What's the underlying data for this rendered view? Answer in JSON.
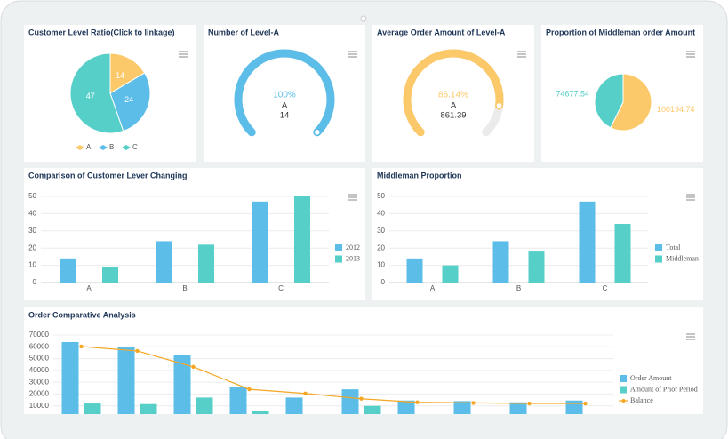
{
  "chart_data": [
    {
      "type": "pie",
      "title": "Customer Level Ratio(Click to linkage)",
      "categories": [
        "A",
        "B",
        "C"
      ],
      "values": [
        14,
        24,
        47
      ],
      "colors": [
        "#fcc96a",
        "#5bbde8",
        "#55cfc7"
      ],
      "legend": "bottom"
    },
    {
      "type": "gauge",
      "title": "Number of Level-A",
      "categories": [
        "A"
      ],
      "values": [
        100
      ],
      "value_labels": [
        "100%"
      ],
      "amounts": [
        14
      ],
      "ylim": [
        0,
        100
      ],
      "color": "#5bbde8"
    },
    {
      "type": "gauge",
      "title": "Average Order Amount of Level-A",
      "categories": [
        "A"
      ],
      "values": [
        86.14
      ],
      "value_labels": [
        "86.14%"
      ],
      "amounts": [
        861.39
      ],
      "ylim": [
        0,
        100
      ],
      "color": "#fcc96a"
    },
    {
      "type": "pie",
      "title": "Proportion of Middleman order Amount",
      "categories": [
        null,
        null
      ],
      "values": [
        100194.74,
        74677.54
      ],
      "colors": [
        "#fcc96a",
        "#55cfc7"
      ]
    },
    {
      "type": "bar",
      "title": "Comparison of Customer Lever Changing",
      "categories": [
        "A",
        "B",
        "C"
      ],
      "series": [
        {
          "name": "2012",
          "color": "#5bbde8",
          "values": [
            14,
            24,
            47
          ]
        },
        {
          "name": "2013",
          "color": "#55cfc7",
          "values": [
            9,
            22,
            50
          ]
        }
      ],
      "ylim": [
        0,
        50
      ],
      "yticks": [
        0,
        10,
        20,
        30,
        40,
        50
      ],
      "grid": true,
      "legend": "right"
    },
    {
      "type": "bar",
      "title": "Middleman Proportion",
      "categories": [
        "A",
        "B",
        "C"
      ],
      "series": [
        {
          "name": "Total",
          "color": "#5bbde8",
          "values": [
            14,
            24,
            47
          ]
        },
        {
          "name": "Middleman",
          "color": "#55cfc7",
          "values": [
            10,
            18,
            34
          ]
        }
      ],
      "ylim": [
        0,
        50
      ],
      "yticks": [
        0,
        10,
        20,
        30,
        40,
        50
      ],
      "grid": true,
      "legend": "right"
    },
    {
      "type": "combo",
      "title": "Order Comparative Analysis",
      "categories": [
        null,
        null,
        null,
        null,
        null,
        null,
        null,
        null,
        null,
        null
      ],
      "series": [
        {
          "name": "Order Amount",
          "mark": "bar",
          "color": "#5bbde8",
          "values": [
            64000,
            60000,
            53000,
            26000,
            17000,
            24000,
            14500,
            14000,
            13000,
            14500
          ]
        },
        {
          "name": "Amount of Prior Period",
          "mark": "bar",
          "color": "#55cfc7",
          "values": [
            12000,
            11500,
            17000,
            6000,
            null,
            10000,
            null,
            null,
            null,
            3000
          ]
        },
        {
          "name": "Balance",
          "mark": "line",
          "color": "#f5a623",
          "values": [
            60250,
            56500,
            43000,
            24000,
            20500,
            16000,
            13000,
            12500,
            12000,
            12000
          ]
        }
      ],
      "ylim": [
        0,
        70000
      ],
      "yticks": [
        10000,
        20000,
        30000,
        40000,
        50000,
        60000,
        70000
      ],
      "grid": true,
      "legend": "right"
    }
  ]
}
